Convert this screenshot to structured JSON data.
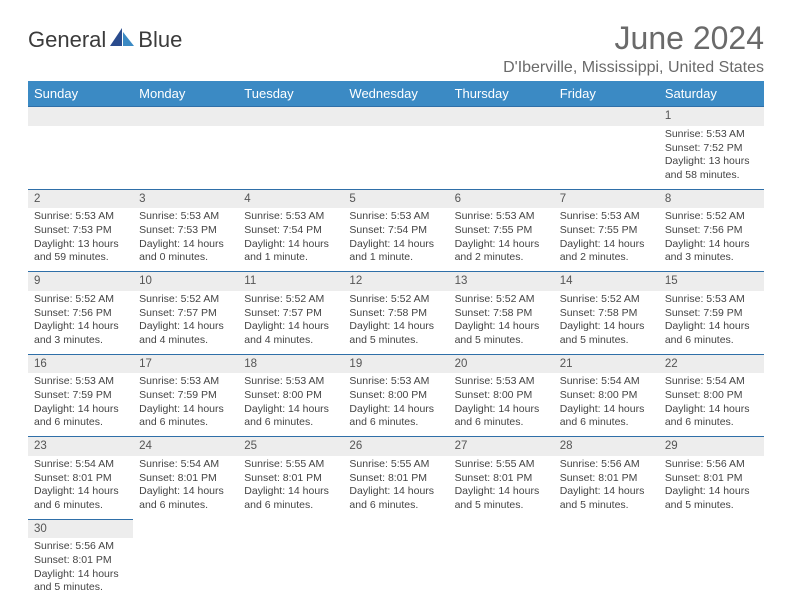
{
  "logo": {
    "text1": "General",
    "text2": "Blue"
  },
  "title": "June 2024",
  "location": "D'Iberville, Mississippi, United States",
  "colors": {
    "header_bg": "#3b8ac4",
    "header_text": "#ffffff",
    "daynum_bg": "#ededed",
    "border": "#2f6fa8",
    "logo_dark": "#2a4b8d",
    "logo_light": "#3b8ac4"
  },
  "dayHeaders": [
    "Sunday",
    "Monday",
    "Tuesday",
    "Wednesday",
    "Thursday",
    "Friday",
    "Saturday"
  ],
  "weeks": [
    [
      null,
      null,
      null,
      null,
      null,
      null,
      {
        "n": "1",
        "sr": "Sunrise: 5:53 AM",
        "ss": "Sunset: 7:52 PM",
        "dl": "Daylight: 13 hours and 58 minutes."
      }
    ],
    [
      {
        "n": "2",
        "sr": "Sunrise: 5:53 AM",
        "ss": "Sunset: 7:53 PM",
        "dl": "Daylight: 13 hours and 59 minutes."
      },
      {
        "n": "3",
        "sr": "Sunrise: 5:53 AM",
        "ss": "Sunset: 7:53 PM",
        "dl": "Daylight: 14 hours and 0 minutes."
      },
      {
        "n": "4",
        "sr": "Sunrise: 5:53 AM",
        "ss": "Sunset: 7:54 PM",
        "dl": "Daylight: 14 hours and 1 minute."
      },
      {
        "n": "5",
        "sr": "Sunrise: 5:53 AM",
        "ss": "Sunset: 7:54 PM",
        "dl": "Daylight: 14 hours and 1 minute."
      },
      {
        "n": "6",
        "sr": "Sunrise: 5:53 AM",
        "ss": "Sunset: 7:55 PM",
        "dl": "Daylight: 14 hours and 2 minutes."
      },
      {
        "n": "7",
        "sr": "Sunrise: 5:53 AM",
        "ss": "Sunset: 7:55 PM",
        "dl": "Daylight: 14 hours and 2 minutes."
      },
      {
        "n": "8",
        "sr": "Sunrise: 5:52 AM",
        "ss": "Sunset: 7:56 PM",
        "dl": "Daylight: 14 hours and 3 minutes."
      }
    ],
    [
      {
        "n": "9",
        "sr": "Sunrise: 5:52 AM",
        "ss": "Sunset: 7:56 PM",
        "dl": "Daylight: 14 hours and 3 minutes."
      },
      {
        "n": "10",
        "sr": "Sunrise: 5:52 AM",
        "ss": "Sunset: 7:57 PM",
        "dl": "Daylight: 14 hours and 4 minutes."
      },
      {
        "n": "11",
        "sr": "Sunrise: 5:52 AM",
        "ss": "Sunset: 7:57 PM",
        "dl": "Daylight: 14 hours and 4 minutes."
      },
      {
        "n": "12",
        "sr": "Sunrise: 5:52 AM",
        "ss": "Sunset: 7:58 PM",
        "dl": "Daylight: 14 hours and 5 minutes."
      },
      {
        "n": "13",
        "sr": "Sunrise: 5:52 AM",
        "ss": "Sunset: 7:58 PM",
        "dl": "Daylight: 14 hours and 5 minutes."
      },
      {
        "n": "14",
        "sr": "Sunrise: 5:52 AM",
        "ss": "Sunset: 7:58 PM",
        "dl": "Daylight: 14 hours and 5 minutes."
      },
      {
        "n": "15",
        "sr": "Sunrise: 5:53 AM",
        "ss": "Sunset: 7:59 PM",
        "dl": "Daylight: 14 hours and 6 minutes."
      }
    ],
    [
      {
        "n": "16",
        "sr": "Sunrise: 5:53 AM",
        "ss": "Sunset: 7:59 PM",
        "dl": "Daylight: 14 hours and 6 minutes."
      },
      {
        "n": "17",
        "sr": "Sunrise: 5:53 AM",
        "ss": "Sunset: 7:59 PM",
        "dl": "Daylight: 14 hours and 6 minutes."
      },
      {
        "n": "18",
        "sr": "Sunrise: 5:53 AM",
        "ss": "Sunset: 8:00 PM",
        "dl": "Daylight: 14 hours and 6 minutes."
      },
      {
        "n": "19",
        "sr": "Sunrise: 5:53 AM",
        "ss": "Sunset: 8:00 PM",
        "dl": "Daylight: 14 hours and 6 minutes."
      },
      {
        "n": "20",
        "sr": "Sunrise: 5:53 AM",
        "ss": "Sunset: 8:00 PM",
        "dl": "Daylight: 14 hours and 6 minutes."
      },
      {
        "n": "21",
        "sr": "Sunrise: 5:54 AM",
        "ss": "Sunset: 8:00 PM",
        "dl": "Daylight: 14 hours and 6 minutes."
      },
      {
        "n": "22",
        "sr": "Sunrise: 5:54 AM",
        "ss": "Sunset: 8:00 PM",
        "dl": "Daylight: 14 hours and 6 minutes."
      }
    ],
    [
      {
        "n": "23",
        "sr": "Sunrise: 5:54 AM",
        "ss": "Sunset: 8:01 PM",
        "dl": "Daylight: 14 hours and 6 minutes."
      },
      {
        "n": "24",
        "sr": "Sunrise: 5:54 AM",
        "ss": "Sunset: 8:01 PM",
        "dl": "Daylight: 14 hours and 6 minutes."
      },
      {
        "n": "25",
        "sr": "Sunrise: 5:55 AM",
        "ss": "Sunset: 8:01 PM",
        "dl": "Daylight: 14 hours and 6 minutes."
      },
      {
        "n": "26",
        "sr": "Sunrise: 5:55 AM",
        "ss": "Sunset: 8:01 PM",
        "dl": "Daylight: 14 hours and 6 minutes."
      },
      {
        "n": "27",
        "sr": "Sunrise: 5:55 AM",
        "ss": "Sunset: 8:01 PM",
        "dl": "Daylight: 14 hours and 5 minutes."
      },
      {
        "n": "28",
        "sr": "Sunrise: 5:56 AM",
        "ss": "Sunset: 8:01 PM",
        "dl": "Daylight: 14 hours and 5 minutes."
      },
      {
        "n": "29",
        "sr": "Sunrise: 5:56 AM",
        "ss": "Sunset: 8:01 PM",
        "dl": "Daylight: 14 hours and 5 minutes."
      }
    ],
    [
      {
        "n": "30",
        "sr": "Sunrise: 5:56 AM",
        "ss": "Sunset: 8:01 PM",
        "dl": "Daylight: 14 hours and 5 minutes."
      },
      null,
      null,
      null,
      null,
      null,
      null
    ]
  ]
}
